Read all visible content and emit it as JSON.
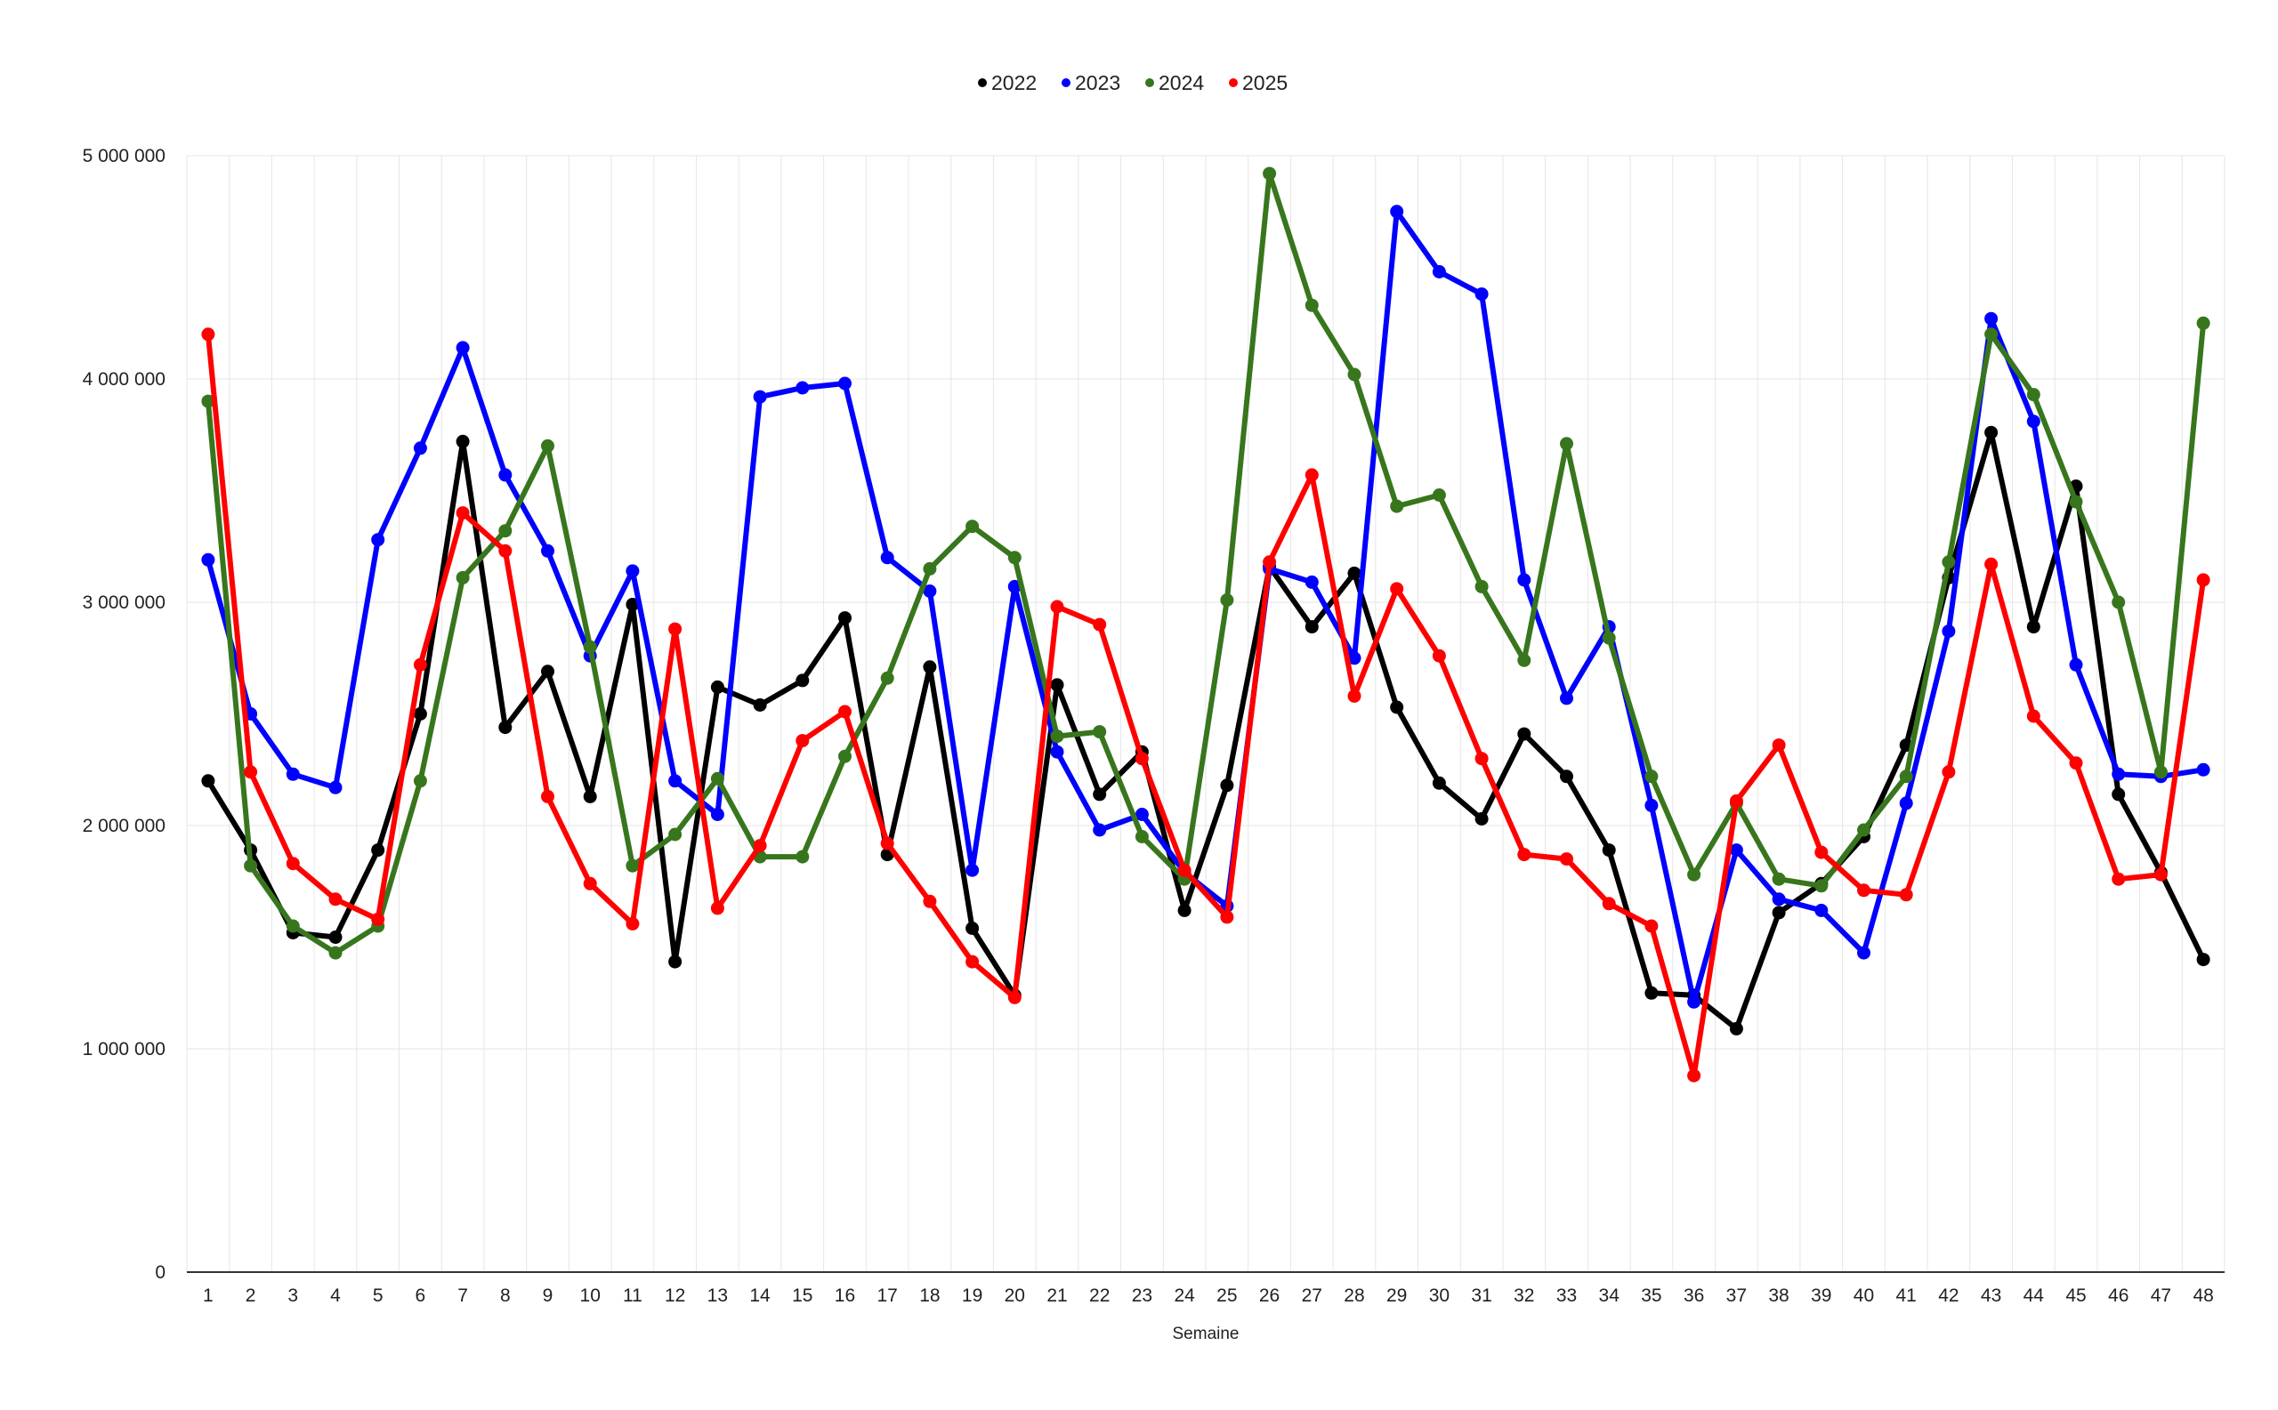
{
  "chart_data": {
    "type": "line",
    "title": "",
    "xlabel": "Semaine",
    "ylabel": "",
    "legend_position": "top-center",
    "grid": true,
    "x": [
      1,
      2,
      3,
      4,
      5,
      6,
      7,
      8,
      9,
      10,
      11,
      12,
      13,
      14,
      15,
      16,
      17,
      18,
      19,
      20,
      21,
      22,
      23,
      24,
      25,
      26,
      27,
      28,
      29,
      30,
      31,
      32,
      33,
      34,
      35,
      36,
      37,
      38,
      39,
      40,
      41,
      42,
      43,
      44,
      45,
      46,
      47,
      48
    ],
    "ylim": [
      0,
      5000000
    ],
    "yticks": [
      0,
      1000000,
      2000000,
      3000000,
      4000000,
      5000000
    ],
    "ytick_labels": [
      "0",
      "1 000 000",
      "2 000 000",
      "3 000 000",
      "4 000 000",
      "5 000 000"
    ],
    "series": [
      {
        "name": "2022",
        "color": "#000000",
        "values": [
          2200000,
          1890000,
          1520000,
          1500000,
          1890000,
          2500000,
          3720000,
          2440000,
          2690000,
          2130000,
          2990000,
          1390000,
          2620000,
          2540000,
          2650000,
          2930000,
          1870000,
          2710000,
          1540000,
          1240000,
          2630000,
          2140000,
          2330000,
          1620000,
          2180000,
          3160000,
          2890000,
          3130000,
          2530000,
          2190000,
          2030000,
          2410000,
          2220000,
          1890000,
          1250000,
          1240000,
          1090000,
          1610000,
          1740000,
          1950000,
          2360000,
          3110000,
          3760000,
          2890000,
          3520000,
          2140000,
          1790000,
          1400000
        ]
      },
      {
        "name": "2023",
        "color": "#0000ff",
        "values": [
          3190000,
          2500000,
          2230000,
          2170000,
          3280000,
          3690000,
          4140000,
          3570000,
          3230000,
          2760000,
          3140000,
          2200000,
          2050000,
          3920000,
          3960000,
          3980000,
          3200000,
          3050000,
          1800000,
          3070000,
          2330000,
          1980000,
          2050000,
          1790000,
          1640000,
          3150000,
          3090000,
          2750000,
          4750000,
          4480000,
          4380000,
          3100000,
          2570000,
          2890000,
          2090000,
          1210000,
          1890000,
          1670000,
          1620000,
          1430000,
          2100000,
          2870000,
          4270000,
          3810000,
          2720000,
          2230000,
          2220000,
          2250000
        ]
      },
      {
        "name": "2024",
        "color": "#38761d",
        "values": [
          3900000,
          1820000,
          1550000,
          1430000,
          1550000,
          2200000,
          3110000,
          3320000,
          3700000,
          2800000,
          1820000,
          1960000,
          2210000,
          1860000,
          1860000,
          2310000,
          2660000,
          3150000,
          3340000,
          3200000,
          2400000,
          2420000,
          1950000,
          1760000,
          3010000,
          4920000,
          4330000,
          4020000,
          3430000,
          3480000,
          3070000,
          2740000,
          3710000,
          2840000,
          2220000,
          1780000,
          2100000,
          1760000,
          1730000,
          1980000,
          2220000,
          3180000,
          4200000,
          3930000,
          3450000,
          3000000,
          2240000,
          4250000
        ]
      },
      {
        "name": "2025",
        "color": "#ff0000",
        "values": [
          4200000,
          2240000,
          1830000,
          1670000,
          1580000,
          2720000,
          3400000,
          3230000,
          2130000,
          1740000,
          1560000,
          2880000,
          1630000,
          1910000,
          2380000,
          2510000,
          1920000,
          1660000,
          1390000,
          1230000,
          2980000,
          2900000,
          2300000,
          1800000,
          1590000,
          3180000,
          3570000,
          2580000,
          3060000,
          2760000,
          2300000,
          1870000,
          1850000,
          1650000,
          1550000,
          880000,
          2110000,
          2360000,
          1880000,
          1710000,
          1690000,
          2240000,
          3170000,
          2490000,
          2280000,
          1760000,
          1780000,
          3100000
        ]
      }
    ]
  }
}
